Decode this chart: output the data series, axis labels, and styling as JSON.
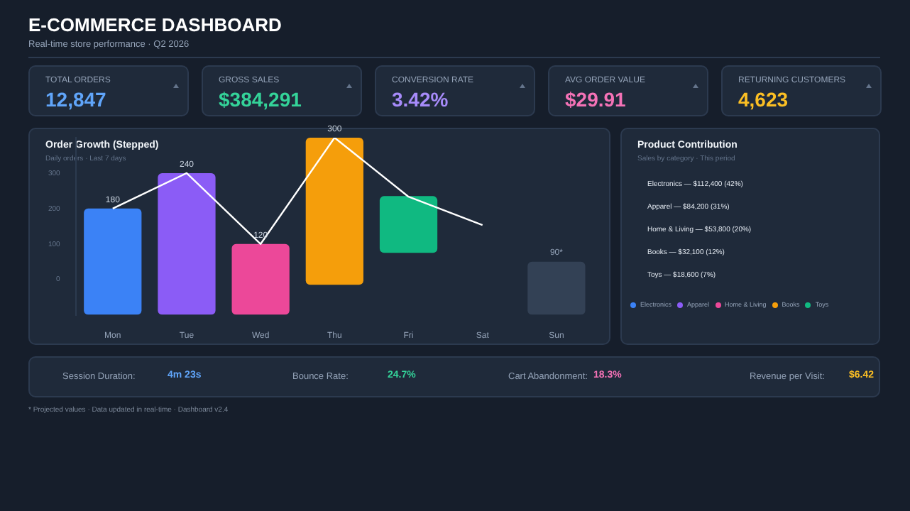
{
  "chart_data": [
    {
      "type": "other",
      "title": "E-COMMERCE DASHBOARD",
      "subtitle": "Real-time store performance · Q2 2026",
      "annotations": [
        "TOTAL ORDERS",
        "12,847",
        "GROSS SALES",
        "$384,291",
        "CONVERSION RATE",
        "3.42%",
        "AVG ORDER VALUE",
        "$29.91",
        "RETURNING CUSTOMERS",
        "4,623"
      ],
      "colors": [
        "#60a5fa",
        "#34d399",
        "#a78bfa",
        "#f472b6",
        "#fbbf24"
      ]
    },
    {
      "type": "bar",
      "title": "Order Growth (Stepped)",
      "subtitle": "Daily orders · Last 7 days",
      "categories": [
        "Mon",
        "Tue",
        "Wed",
        "Thu",
        "Fri",
        "Sat",
        "Sun"
      ],
      "series": [
        {
          "type": "bar",
          "values": [
            300,
            400,
            200,
            415,
            160,
            null,
            150
          ],
          "base": [
            -100,
            -100,
            -100,
            -15,
            75,
            null,
            -100
          ],
          "colors": [
            "#3b82f6",
            "#8b5cf6",
            "#ec4899",
            "#f59e0b",
            "#10b981",
            "#334155",
            "#334155"
          ]
        },
        {
          "type": "line",
          "axis": "y2",
          "color": "#ffffff",
          "values": [
            180,
            240,
            120,
            300,
            200,
            152,
            null
          ],
          "value_labels": [
            "180",
            "240",
            "120",
            "300",
            null,
            null,
            null
          ]
        }
      ],
      "annotations": [
        {
          "text": "90*",
          "x": "Sun",
          "y": 65
        }
      ],
      "ylim": [
        -100,
        400
      ],
      "yticks": [
        0,
        100,
        200,
        300
      ],
      "y2lim": [
        0,
        300
      ],
      "grid": false,
      "legend": false,
      "marker": "none",
      "line_style": "solid"
    },
    {
      "type": "other",
      "title": "Product Contribution",
      "subtitle": "Sales by category · This period",
      "annotations": [
        "Electronics — $112,400 (42%)",
        "Apparel — $84,200 (31%)",
        "Home & Living — $53,800 (20%)",
        "Books — $32,100 (12%)",
        "Toys — $18,600 (7%)"
      ],
      "categories": [
        "Electronics",
        "Apparel",
        "Home & Living",
        "Books",
        "Toys"
      ],
      "colors": [
        "#3b82f6",
        "#8b5cf6",
        "#ec4899",
        "#f59e0b",
        "#10b981"
      ]
    },
    {
      "type": "other",
      "annotations": [
        "Session Duration:",
        "4m 23s",
        "Bounce Rate:",
        "24.7%",
        "Cart Abandonment:",
        "18.3%",
        "Revenue per Visit:",
        "$6.42",
        "* Projected values · Data updated in real-time · Dashboard v2.4"
      ],
      "colors": [
        "#60a5fa",
        "#34d399",
        "#f472b6",
        "#fbbf24"
      ]
    }
  ]
}
